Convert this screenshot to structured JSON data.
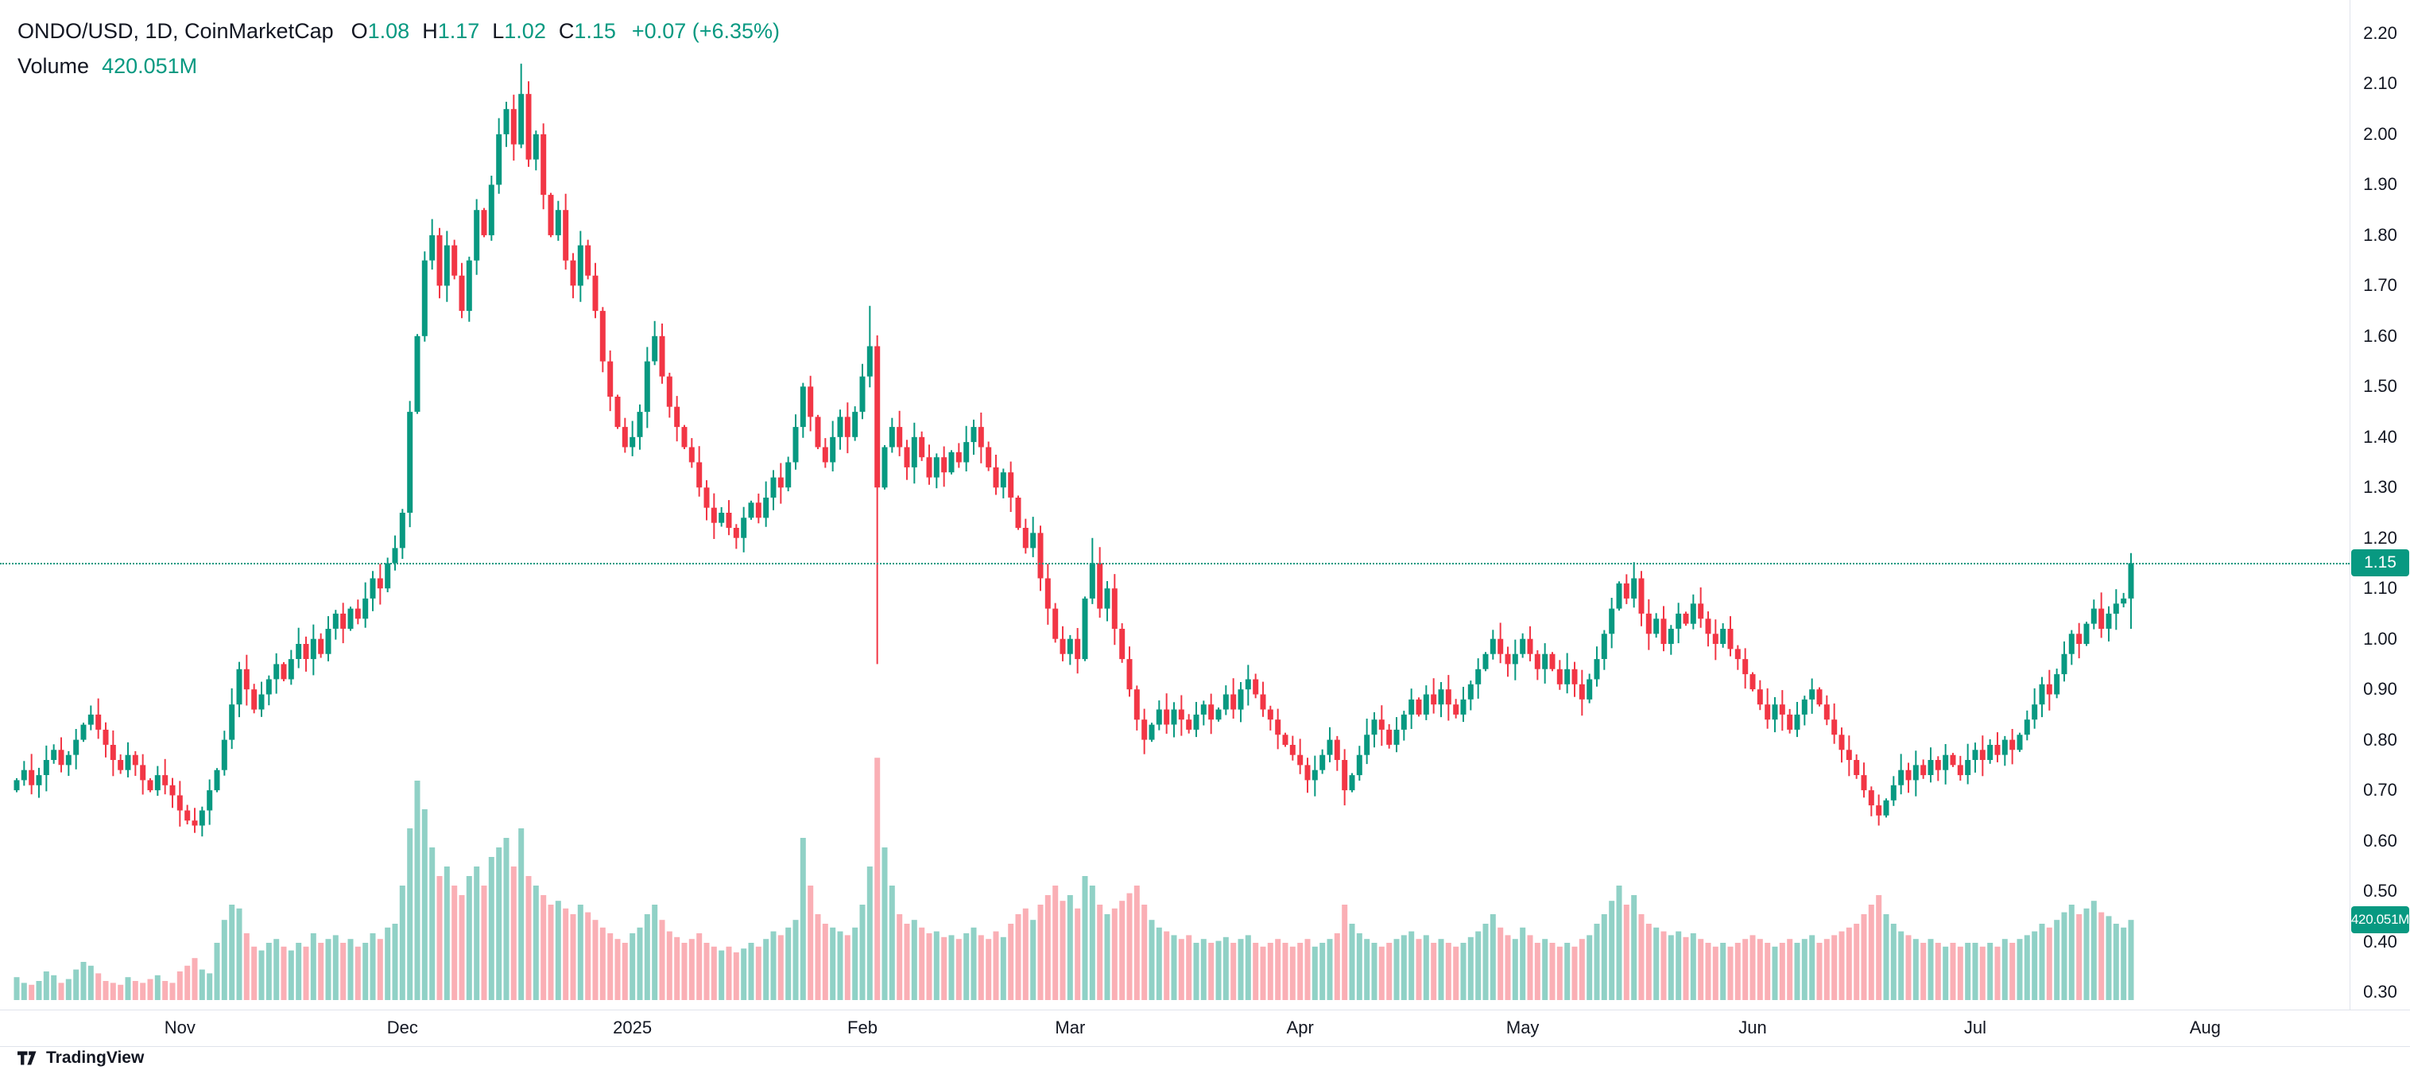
{
  "legend": {
    "symbol": "ONDO/USD, 1D, CoinMarketCap",
    "open_label": "O",
    "open": "1.08",
    "high_label": "H",
    "high": "1.17",
    "low_label": "L",
    "low": "1.02",
    "close_label": "C",
    "close": "1.15",
    "change": "+0.07 (+6.35%)",
    "volume_label": "Volume",
    "volume_value": "420.051M"
  },
  "colors": {
    "up": "#089981",
    "down": "#f23645",
    "vol_up": "rgba(8,153,129,0.45)",
    "vol_down": "rgba(242,54,69,0.40)",
    "badge_bg": "#089981",
    "axis_text": "#131722",
    "separator": "#e0e3eb"
  },
  "price_scale": {
    "labels": [
      "2.20",
      "2.10",
      "2.00",
      "1.90",
      "1.80",
      "1.70",
      "1.60",
      "1.50",
      "1.40",
      "1.30",
      "1.20",
      "1.10",
      "1.00",
      "0.90",
      "0.80",
      "0.70",
      "0.60",
      "0.50",
      "0.40",
      "0.30"
    ],
    "current_price_badge": "1.15",
    "volume_badge": "420.051M"
  },
  "footer": {
    "brand": "TradingView"
  },
  "chart_data": {
    "type": "candlestick",
    "symbol": "ONDO/USD",
    "interval": "1D",
    "source": "CoinMarketCap",
    "title": "ONDO/USD, 1D, CoinMarketCap",
    "price_axis_range": [
      0.3,
      2.2
    ],
    "grid": false,
    "last": {
      "open": 1.08,
      "high": 1.17,
      "low": 1.02,
      "close": 1.15,
      "change": "+0.07",
      "change_pct": "+6.35%",
      "volume_m": 420.051
    },
    "first_open": 0.7,
    "month_ticks": [
      {
        "label": "Nov",
        "d": 22
      },
      {
        "label": "Dec",
        "d": 52
      },
      {
        "label": "2025",
        "d": 83
      },
      {
        "label": "Feb",
        "d": 114
      },
      {
        "label": "Mar",
        "d": 142
      },
      {
        "label": "Apr",
        "d": 173
      },
      {
        "label": "May",
        "d": 203
      },
      {
        "label": "Jun",
        "d": 234
      },
      {
        "label": "Jul",
        "d": 264
      },
      {
        "label": "Aug",
        "d": 295
      }
    ],
    "closes": [
      0.72,
      0.74,
      0.71,
      0.73,
      0.76,
      0.78,
      0.75,
      0.77,
      0.8,
      0.83,
      0.85,
      0.82,
      0.79,
      0.76,
      0.74,
      0.77,
      0.75,
      0.72,
      0.7,
      0.73,
      0.71,
      0.69,
      0.66,
      0.64,
      0.63,
      0.66,
      0.7,
      0.74,
      0.8,
      0.87,
      0.94,
      0.9,
      0.86,
      0.89,
      0.92,
      0.95,
      0.92,
      0.96,
      0.99,
      0.96,
      1.0,
      0.97,
      1.02,
      1.05,
      1.02,
      1.06,
      1.04,
      1.08,
      1.12,
      1.1,
      1.15,
      1.18,
      1.25,
      1.45,
      1.6,
      1.75,
      1.8,
      1.7,
      1.78,
      1.72,
      1.65,
      1.75,
      1.85,
      1.8,
      1.9,
      2.0,
      2.05,
      1.98,
      2.08,
      1.95,
      2.0,
      1.88,
      1.8,
      1.85,
      1.75,
      1.7,
      1.78,
      1.72,
      1.65,
      1.55,
      1.48,
      1.42,
      1.38,
      1.4,
      1.45,
      1.55,
      1.6,
      1.52,
      1.46,
      1.42,
      1.38,
      1.35,
      1.3,
      1.26,
      1.23,
      1.25,
      1.22,
      1.2,
      1.24,
      1.27,
      1.24,
      1.28,
      1.32,
      1.3,
      1.35,
      1.42,
      1.5,
      1.44,
      1.38,
      1.35,
      1.4,
      1.44,
      1.4,
      1.45,
      1.52,
      1.58,
      1.3,
      1.38,
      1.42,
      1.38,
      1.34,
      1.4,
      1.36,
      1.32,
      1.36,
      1.33,
      1.37,
      1.35,
      1.39,
      1.42,
      1.38,
      1.34,
      1.3,
      1.33,
      1.28,
      1.22,
      1.18,
      1.21,
      1.12,
      1.06,
      1.0,
      0.97,
      1.0,
      0.96,
      1.08,
      1.15,
      1.06,
      1.1,
      1.02,
      0.96,
      0.9,
      0.84,
      0.8,
      0.83,
      0.86,
      0.83,
      0.86,
      0.84,
      0.82,
      0.85,
      0.87,
      0.84,
      0.86,
      0.89,
      0.86,
      0.9,
      0.92,
      0.89,
      0.86,
      0.84,
      0.81,
      0.79,
      0.77,
      0.75,
      0.72,
      0.74,
      0.77,
      0.8,
      0.76,
      0.7,
      0.73,
      0.77,
      0.81,
      0.84,
      0.82,
      0.79,
      0.82,
      0.85,
      0.88,
      0.85,
      0.89,
      0.87,
      0.9,
      0.87,
      0.85,
      0.88,
      0.91,
      0.94,
      0.97,
      1.0,
      0.97,
      0.95,
      0.97,
      1.0,
      0.97,
      0.94,
      0.97,
      0.94,
      0.91,
      0.94,
      0.91,
      0.88,
      0.92,
      0.96,
      1.01,
      1.06,
      1.11,
      1.08,
      1.12,
      1.05,
      1.01,
      1.04,
      0.99,
      1.02,
      1.05,
      1.03,
      1.07,
      1.04,
      1.01,
      0.99,
      1.02,
      0.98,
      0.96,
      0.93,
      0.9,
      0.87,
      0.84,
      0.87,
      0.85,
      0.82,
      0.85,
      0.88,
      0.9,
      0.87,
      0.84,
      0.81,
      0.78,
      0.76,
      0.73,
      0.7,
      0.67,
      0.65,
      0.68,
      0.71,
      0.74,
      0.72,
      0.75,
      0.73,
      0.76,
      0.74,
      0.77,
      0.75,
      0.73,
      0.76,
      0.78,
      0.76,
      0.79,
      0.77,
      0.8,
      0.78,
      0.81,
      0.84,
      0.87,
      0.91,
      0.89,
      0.93,
      0.97,
      1.01,
      0.99,
      1.03,
      1.06,
      1.02,
      1.05,
      1.07,
      1.08,
      1.15
    ],
    "volumes_m": [
      120,
      90,
      80,
      100,
      150,
      130,
      90,
      110,
      160,
      200,
      180,
      140,
      100,
      90,
      80,
      120,
      100,
      90,
      110,
      130,
      100,
      90,
      150,
      180,
      220,
      160,
      140,
      300,
      420,
      500,
      480,
      350,
      280,
      260,
      300,
      320,
      280,
      260,
      300,
      280,
      350,
      300,
      320,
      340,
      300,
      320,
      280,
      300,
      350,
      320,
      380,
      400,
      600,
      900,
      1150,
      1000,
      800,
      650,
      700,
      600,
      550,
      650,
      700,
      600,
      750,
      800,
      850,
      700,
      900,
      650,
      600,
      550,
      500,
      520,
      480,
      450,
      500,
      460,
      420,
      380,
      350,
      320,
      300,
      350,
      380,
      450,
      500,
      420,
      360,
      330,
      300,
      320,
      350,
      300,
      280,
      260,
      280,
      250,
      270,
      300,
      280,
      320,
      360,
      340,
      380,
      420,
      850,
      600,
      450,
      400,
      380,
      360,
      340,
      380,
      500,
      700,
      1270,
      800,
      600,
      450,
      400,
      420,
      380,
      350,
      360,
      330,
      340,
      320,
      350,
      380,
      340,
      320,
      360,
      330,
      400,
      450,
      480,
      420,
      500,
      550,
      600,
      520,
      550,
      480,
      650,
      600,
      500,
      450,
      480,
      520,
      560,
      600,
      500,
      420,
      380,
      360,
      340,
      320,
      340,
      300,
      320,
      300,
      310,
      330,
      300,
      320,
      340,
      300,
      280,
      300,
      320,
      300,
      280,
      300,
      320,
      280,
      300,
      320,
      350,
      500,
      400,
      350,
      320,
      300,
      280,
      300,
      320,
      340,
      360,
      320,
      340,
      300,
      320,
      300,
      280,
      300,
      330,
      360,
      400,
      450,
      380,
      340,
      320,
      380,
      340,
      300,
      320,
      300,
      280,
      300,
      280,
      320,
      340,
      400,
      450,
      520,
      600,
      500,
      550,
      450,
      400,
      380,
      360,
      340,
      360,
      330,
      350,
      320,
      300,
      280,
      300,
      280,
      300,
      320,
      340,
      320,
      300,
      280,
      300,
      320,
      300,
      320,
      340,
      300,
      320,
      340,
      360,
      380,
      400,
      450,
      500,
      550,
      450,
      400,
      360,
      340,
      320,
      300,
      320,
      300,
      280,
      300,
      280,
      300,
      300,
      280,
      300,
      280,
      320,
      300,
      320,
      340,
      360,
      400,
      380,
      420,
      460,
      500,
      450,
      480,
      520,
      460,
      440,
      400,
      380,
      420
    ],
    "wick_overrides": [
      {
        "i": 68,
        "h": 2.14
      },
      {
        "i": 86,
        "h": 1.63
      },
      {
        "i": 115,
        "h": 1.66
      },
      {
        "i": 116,
        "l": 0.95
      },
      {
        "i": 145,
        "h": 1.2
      },
      {
        "i": 179,
        "l": 0.67
      },
      {
        "i": 251,
        "l": 0.63
      },
      {
        "i": 285,
        "o": 1.08,
        "h": 1.17,
        "l": 1.02
      }
    ]
  }
}
